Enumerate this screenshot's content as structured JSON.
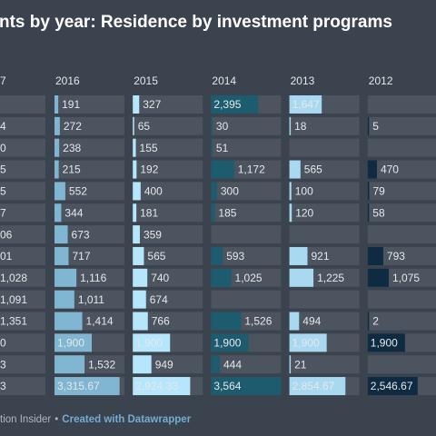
{
  "title": "nts by year: Residence by investment programs",
  "partial_column": {
    "header": "7",
    "labels": [
      null,
      "4",
      "0",
      "5",
      "5",
      "7",
      "06",
      "01",
      "1,028",
      "1,091",
      "1,351",
      "0",
      "3",
      "3"
    ]
  },
  "columns": [
    {
      "header": "2016",
      "color": "#80b6d1",
      "values": [
        191,
        272,
        238,
        215,
        552,
        344,
        673,
        717,
        1116,
        1011,
        1414,
        1900,
        1532,
        3315.67
      ],
      "value_labels": [
        "191",
        "272",
        "238",
        "215",
        "552",
        "344",
        "673",
        "717",
        "1,116",
        "1,011",
        "1,414",
        "1,900",
        "1,532",
        "3,315.67"
      ]
    },
    {
      "header": "2015",
      "color": "#b5e6fb",
      "values": [
        327,
        65,
        155,
        192,
        400,
        181,
        359,
        565,
        740,
        674,
        766,
        1900,
        949,
        2924.33
      ],
      "value_labels": [
        "327",
        "65",
        "155",
        "192",
        "400",
        "181",
        "359",
        "565",
        "740",
        "674",
        "766",
        "1,900",
        "949",
        "2,924.33"
      ]
    },
    {
      "header": "2014",
      "color": "#1d5b6f",
      "values": [
        2395,
        30,
        51,
        1172,
        300,
        185,
        null,
        593,
        1025,
        null,
        1526,
        1900,
        444,
        3564
      ],
      "value_labels": [
        "2,395",
        "30",
        "51",
        "1,172",
        "300",
        "185",
        null,
        "593",
        "1,025",
        null,
        "1,526",
        "1,900",
        "444",
        "3,564"
      ]
    },
    {
      "header": "2013",
      "color": "#a9d9f1",
      "values": [
        1647,
        18,
        null,
        565,
        100,
        120,
        null,
        921,
        1225,
        null,
        494,
        1900,
        21,
        2854.67
      ],
      "value_labels": [
        "1,647",
        "18",
        null,
        "565",
        "100",
        "120",
        null,
        "921",
        "1,225",
        null,
        "494",
        "1,900",
        "21",
        "2,854.67"
      ]
    },
    {
      "header": "2012",
      "color": "#0e2b42",
      "values": [
        null,
        5,
        null,
        470,
        79,
        58,
        null,
        793,
        1075,
        null,
        2,
        1900,
        null,
        2546.67
      ],
      "value_labels": [
        null,
        "5",
        null,
        "470",
        "79",
        "58",
        null,
        "793",
        "1,075",
        null,
        "2",
        "1,900",
        null,
        "2,546.67"
      ]
    }
  ],
  "source": "tion Insider",
  "separator": "•",
  "credit": "Created with Datawrapper"
}
